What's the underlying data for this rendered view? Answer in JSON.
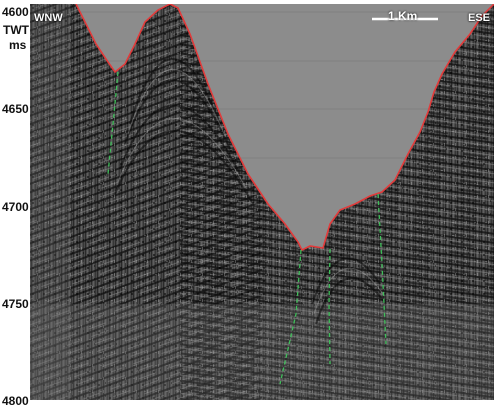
{
  "axis": {
    "unit_top": "TWT",
    "unit_bottom": "ms",
    "ticks": [
      "4600",
      "4650",
      "4700",
      "4750",
      "4800"
    ]
  },
  "labels": {
    "left_direction": "WNW",
    "right_direction": "ESE",
    "scale": "1 Km"
  },
  "colors": {
    "horizon": "#e23b3b",
    "fault": "#3fbf5a",
    "water_column": "#8f8f8f",
    "scale_bar": "#ffffff"
  }
}
